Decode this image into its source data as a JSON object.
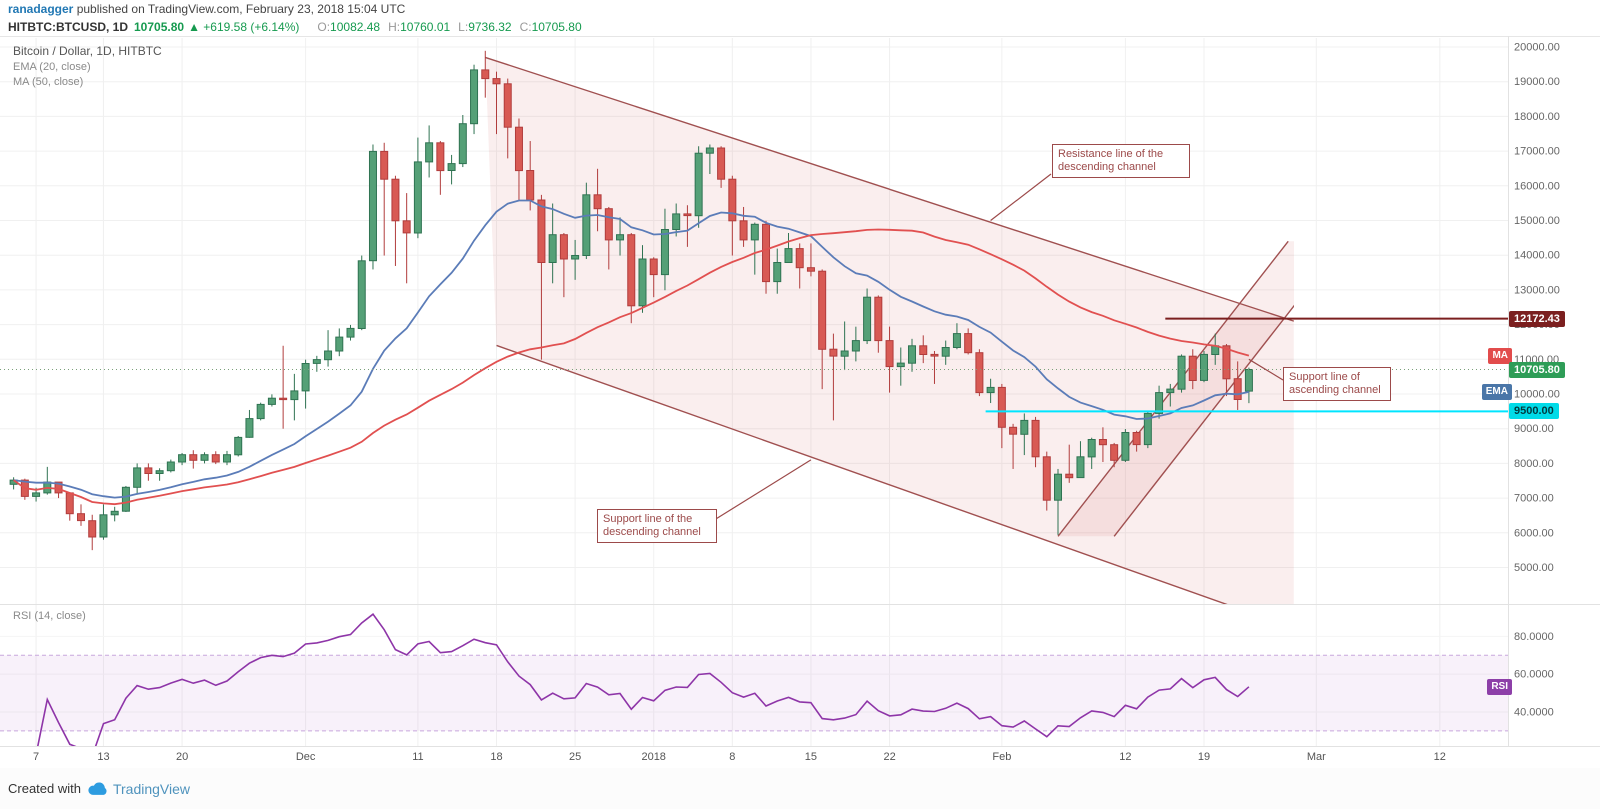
{
  "attribution": {
    "author": "ranadagger",
    "text": " published on TradingView.com, February 23, 2018 15:04 UTC"
  },
  "symbol_bar": {
    "symbol": "HITBTC:BTCUSD, 1D",
    "last": "10705.80",
    "arrow": "▲",
    "change": "+619.58 (+6.14%)",
    "o_label": "O:",
    "o": "10082.48",
    "h_label": "H:",
    "h": "10760.01",
    "l_label": "L:",
    "l": "9736.32",
    "c_label": "C:",
    "c": "10705.80"
  },
  "legend": {
    "title": "Bitcoin / Dollar, 1D, HITBTC",
    "ema": "EMA (20, close)",
    "ma": "MA (50, close)",
    "rsi": "RSI (14, close)"
  },
  "badges": {
    "resistance": "12172.43",
    "ma": "MA",
    "last": "10705.80",
    "ema": "EMA",
    "support": "9500.00",
    "rsi": "RSI"
  },
  "footer": {
    "created_with": "Created with",
    "brand": "TradingView"
  },
  "colors": {
    "up": "#55a077",
    "up_border": "#2f7352",
    "down": "#d85a54",
    "down_border": "#b13c3c",
    "ema": "#5b7cb8",
    "ma": "#e15050",
    "channel_line": "#a05050",
    "channel_fill": "rgba(205,92,92,0.10)",
    "resistance_level": "#7b1f1f",
    "support_level": "#00e5ff",
    "last_price_level": "#7aa07a",
    "ma_badge": "#e24c4c",
    "ema_badge": "#4a76a8",
    "rsi_badge": "#8d3fa8",
    "last_badge": "#2e9d57",
    "support_badge": "#00dbe8",
    "rsi_line": "#8e35a8",
    "rsi_band_fill": "rgba(149,63,186,0.07)",
    "rsi_band_line": "#c7a7dd",
    "header_green": "#169a4f",
    "author_blue": "#2178b4",
    "brand_blue": "#4f93bd"
  },
  "axis": {
    "price_ticks": [
      5000,
      6000,
      7000,
      8000,
      9000,
      10000,
      11000,
      12000,
      13000,
      14000,
      15000,
      16000,
      17000,
      18000,
      19000,
      20000
    ],
    "rsi_ticks": [
      40,
      60,
      80
    ]
  },
  "chart_data": [
    {
      "type": "candlestick",
      "symbol": "HITBTC:BTCUSD",
      "interval": "1D",
      "title": "Bitcoin / Dollar, 1D, HITBTC",
      "x_range": "daily candles, 2017-11-05 through 2018-02-23; axis extends to 2018-03-12",
      "ylim": [
        3950,
        20320
      ],
      "x_ticks": [
        {
          "slot": 2,
          "label": "7"
        },
        {
          "slot": 8,
          "label": "13"
        },
        {
          "slot": 15,
          "label": "20"
        },
        {
          "slot": 26,
          "label": "Dec"
        },
        {
          "slot": 36,
          "label": "11"
        },
        {
          "slot": 43,
          "label": "18"
        },
        {
          "slot": 50,
          "label": "25"
        },
        {
          "slot": 57,
          "label": "2018"
        },
        {
          "slot": 64,
          "label": "8"
        },
        {
          "slot": 71,
          "label": "15"
        },
        {
          "slot": 78,
          "label": "22"
        },
        {
          "slot": 88,
          "label": "Feb"
        },
        {
          "slot": 99,
          "label": "12"
        },
        {
          "slot": 106,
          "label": "19"
        },
        {
          "slot": 116,
          "label": "Mar"
        },
        {
          "slot": 127,
          "label": "12"
        }
      ],
      "overlays": [
        {
          "label": "EMA (20, close)",
          "type": "ema",
          "period": 20,
          "color": "#5b7cb8"
        },
        {
          "label": "MA (50, close)",
          "type": "sma",
          "period": 50,
          "color": "#e15050"
        }
      ],
      "levels": [
        {
          "price": 12172.43,
          "label": "12172.43",
          "color": "#7b1f1f",
          "width": 2,
          "from_slot": 103,
          "style": "solid"
        },
        {
          "price": 10705.8,
          "label": "10705.80",
          "color": "#7aa07a",
          "width": 1,
          "from_slot": -1,
          "style": "dotted"
        },
        {
          "price": 9500,
          "label": "9500.00",
          "color": "#00e5ff",
          "width": 2,
          "from_slot": 87,
          "style": "solid"
        }
      ],
      "channels": [
        {
          "name": "descending-channel",
          "upper": [
            [
              42,
              19700
            ],
            [
              114,
              12100
            ]
          ],
          "lower": [
            [
              43,
              11400
            ],
            [
              114,
              3250
            ]
          ]
        },
        {
          "name": "ascending-channel",
          "upper": [
            [
              93,
              5900
            ],
            [
              113.5,
              14400
            ]
          ],
          "lower": [
            [
              98,
              5900
            ],
            [
              118.5,
              14400
            ]
          ]
        }
      ],
      "annotations": [
        {
          "text": "Resistance line of the descending channel",
          "anchor": {
            "slot": 87,
            "price": 15000
          }
        },
        {
          "text": "Support line of the descending channel",
          "anchor": {
            "slot": 71,
            "price": 8100
          }
        },
        {
          "text": "Support line of ascending channel",
          "anchor": {
            "slot": 110,
            "price": 11000
          }
        }
      ],
      "ohlc": [
        [
          7400,
          7600,
          7250,
          7520
        ],
        [
          7520,
          7560,
          6950,
          7050
        ],
        [
          7050,
          7300,
          6900,
          7150
        ],
        [
          7150,
          7900,
          7100,
          7460
        ],
        [
          7460,
          7460,
          7000,
          7150
        ],
        [
          7150,
          7150,
          6350,
          6550
        ],
        [
          6550,
          6820,
          6200,
          6350
        ],
        [
          6350,
          6520,
          5500,
          5880
        ],
        [
          5880,
          6820,
          5800,
          6520
        ],
        [
          6520,
          6750,
          6330,
          6620
        ],
        [
          6620,
          7350,
          6600,
          7310
        ],
        [
          7310,
          8000,
          7100,
          7870
        ],
        [
          7870,
          8000,
          7500,
          7710
        ],
        [
          7710,
          7860,
          7500,
          7790
        ],
        [
          7790,
          8110,
          7740,
          8040
        ],
        [
          8040,
          8300,
          7950,
          8250
        ],
        [
          8250,
          8380,
          7850,
          8090
        ],
        [
          8090,
          8320,
          8000,
          8250
        ],
        [
          8250,
          8350,
          7980,
          8040
        ],
        [
          8040,
          8360,
          7950,
          8250
        ],
        [
          8250,
          8790,
          8200,
          8750
        ],
        [
          8750,
          9540,
          8740,
          9290
        ],
        [
          9290,
          9750,
          9240,
          9700
        ],
        [
          9700,
          9990,
          9640,
          9880
        ],
        [
          9880,
          11390,
          9000,
          9840
        ],
        [
          9840,
          10580,
          9240,
          10090
        ],
        [
          10090,
          10990,
          9580,
          10880
        ],
        [
          10880,
          11100,
          10640,
          10990
        ],
        [
          10990,
          11840,
          10790,
          11240
        ],
        [
          11240,
          11890,
          11090,
          11640
        ],
        [
          11640,
          11990,
          11540,
          11890
        ],
        [
          11890,
          13990,
          11840,
          13840
        ],
        [
          13840,
          17190,
          13590,
          16990
        ],
        [
          16990,
          17240,
          13990,
          16190
        ],
        [
          16190,
          16290,
          13690,
          14990
        ],
        [
          14990,
          15790,
          13190,
          14640
        ],
        [
          14640,
          17390,
          14490,
          16690
        ],
        [
          16690,
          17740,
          16240,
          17240
        ],
        [
          17240,
          17290,
          15740,
          16440
        ],
        [
          16440,
          16890,
          16040,
          16640
        ],
        [
          16640,
          18040,
          16540,
          17790
        ],
        [
          17790,
          19490,
          17490,
          19340
        ],
        [
          19340,
          19890,
          18540,
          19090
        ],
        [
          19090,
          19290,
          17490,
          18940
        ],
        [
          18940,
          19090,
          16790,
          17690
        ],
        [
          17690,
          17940,
          15590,
          16440
        ],
        [
          16440,
          17290,
          15290,
          15590
        ],
        [
          15590,
          15740,
          10990,
          13790
        ],
        [
          13790,
          15490,
          13190,
          14590
        ],
        [
          14590,
          14640,
          12790,
          13890
        ],
        [
          13890,
          14440,
          13290,
          13990
        ],
        [
          13990,
          16090,
          13890,
          15740
        ],
        [
          15740,
          16490,
          14690,
          15340
        ],
        [
          15340,
          15390,
          13590,
          14440
        ],
        [
          14440,
          15090,
          13990,
          14590
        ],
        [
          14590,
          14640,
          12040,
          12540
        ],
        [
          12540,
          14290,
          12340,
          13890
        ],
        [
          13890,
          13940,
          12790,
          13440
        ],
        [
          13440,
          15340,
          12990,
          14740
        ],
        [
          14740,
          15490,
          14540,
          15190
        ],
        [
          15190,
          15440,
          14240,
          15140
        ],
        [
          15140,
          17140,
          14790,
          16940
        ],
        [
          16940,
          17190,
          16340,
          17090
        ],
        [
          17090,
          17140,
          15940,
          16190
        ],
        [
          16190,
          16290,
          13990,
          14990
        ],
        [
          14990,
          15390,
          14240,
          14440
        ],
        [
          14440,
          14940,
          13440,
          14890
        ],
        [
          14890,
          14990,
          12890,
          13240
        ],
        [
          13240,
          14190,
          12890,
          13790
        ],
        [
          13790,
          14640,
          13790,
          14190
        ],
        [
          14190,
          14340,
          13040,
          13640
        ],
        [
          13640,
          14340,
          13390,
          13540
        ],
        [
          13540,
          13590,
          10140,
          11290
        ],
        [
          11290,
          11740,
          9240,
          11090
        ],
        [
          11090,
          12090,
          10690,
          11240
        ],
        [
          11240,
          11940,
          10940,
          11540
        ],
        [
          11540,
          13040,
          11440,
          12790
        ],
        [
          12790,
          12840,
          11190,
          11540
        ],
        [
          11540,
          11940,
          10040,
          10790
        ],
        [
          10790,
          11340,
          10240,
          10890
        ],
        [
          10890,
          11590,
          10640,
          11390
        ],
        [
          11390,
          11690,
          10890,
          11140
        ],
        [
          11140,
          11240,
          10290,
          11090
        ],
        [
          11090,
          11540,
          10840,
          11340
        ],
        [
          11340,
          12040,
          11290,
          11740
        ],
        [
          11740,
          11890,
          11140,
          11190
        ],
        [
          11190,
          11290,
          9940,
          10040
        ],
        [
          10040,
          10440,
          9740,
          10190
        ],
        [
          10190,
          10290,
          8440,
          9040
        ],
        [
          9040,
          9140,
          7840,
          8840
        ],
        [
          8840,
          9440,
          8240,
          9240
        ],
        [
          9240,
          9340,
          7890,
          8190
        ],
        [
          8190,
          8340,
          6640,
          6940
        ],
        [
          6940,
          7840,
          5940,
          7690
        ],
        [
          7690,
          8540,
          7440,
          7590
        ],
        [
          7590,
          8640,
          7590,
          8190
        ],
        [
          8190,
          8740,
          7840,
          8690
        ],
        [
          8690,
          9040,
          8040,
          8540
        ],
        [
          8540,
          8590,
          7890,
          8090
        ],
        [
          8090,
          8990,
          8040,
          8890
        ],
        [
          8890,
          8940,
          8340,
          8540
        ],
        [
          8540,
          9490,
          8440,
          9440
        ],
        [
          9440,
          10240,
          9290,
          10040
        ],
        [
          10040,
          10290,
          9640,
          10140
        ],
        [
          10140,
          11140,
          10040,
          11090
        ],
        [
          11090,
          11290,
          10140,
          10390
        ],
        [
          10390,
          11240,
          10340,
          11140
        ],
        [
          11140,
          11740,
          10840,
          11390
        ],
        [
          11390,
          11440,
          9940,
          10440
        ],
        [
          10440,
          10940,
          9540,
          9840
        ],
        [
          10082.48,
          10760.01,
          9736.32,
          10705.8
        ]
      ]
    },
    {
      "type": "line",
      "title": "RSI (14, close)",
      "derived": "RSI(14) computed from the close series of chart_data[0]",
      "period": 14,
      "upper_band": 70,
      "lower_band": 30,
      "y_ticks": [
        40,
        60,
        80
      ],
      "last_value_badge": "RSI"
    }
  ]
}
